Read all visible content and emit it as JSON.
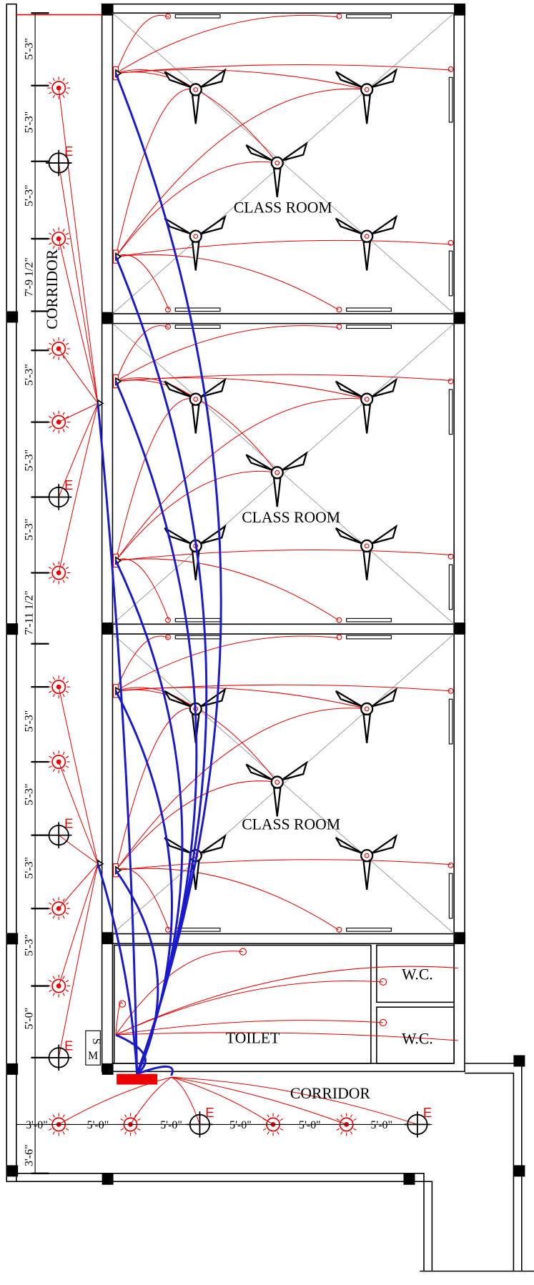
{
  "rooms": [
    {
      "label": "CLASS ROOM"
    },
    {
      "label": "CLASS ROOM"
    },
    {
      "label": "CLASS ROOM"
    }
  ],
  "corridors": [
    "CORRIDOR",
    "CORRIDOR"
  ],
  "toilet": "TOILET",
  "wc": [
    "W.C.",
    "W.C."
  ],
  "board": [
    "M",
    "S"
  ],
  "vertical_dimensions": [
    "5'-3\"",
    "5'-3\"",
    "5'-3\"",
    "7'-9 1/2\"",
    "5'-3\"",
    "5'-3\"",
    "5'-3\"",
    "7'-11 1/2\"",
    "5'-3\"",
    "5'-3\"",
    "5'-3\"",
    "5'-3\"",
    "5'-0\"",
    "3'-6\""
  ],
  "horizontal_dimensions": [
    "3'-0\"",
    "5'-0\"",
    "5'-0\"",
    "5'-0\"",
    "5'-0\"",
    "5'-0\""
  ],
  "socket_labels": [
    "E",
    "E",
    "E",
    "E",
    "E",
    "E"
  ]
}
